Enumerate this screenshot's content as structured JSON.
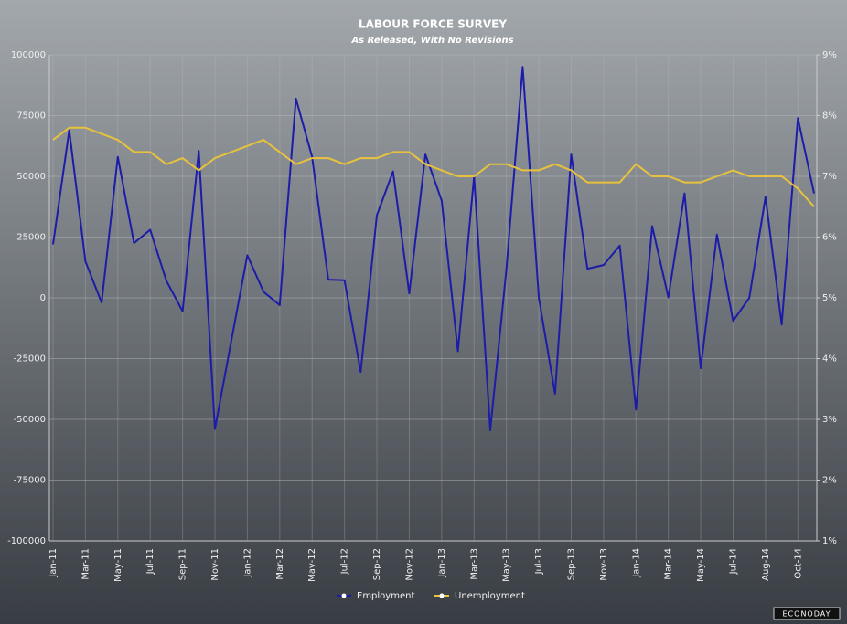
{
  "chart_data": {
    "type": "line",
    "title": "LABOUR FORCE SURVEY",
    "subtitle": "As Released, With No Revisions",
    "watermark": "ECONODAY",
    "categories": [
      "Jan-11",
      null,
      "Mar-11",
      null,
      "May-11",
      null,
      "Jul-11",
      null,
      "Sep-11",
      null,
      "Nov-11",
      null,
      "Jan-12",
      null,
      "Mar-12",
      null,
      "May-12",
      null,
      "Jul-12",
      null,
      "Sep-12",
      null,
      "Nov-12",
      null,
      "Jan-13",
      null,
      "Mar-13",
      null,
      "May-13",
      null,
      "Jul-13",
      null,
      "Sep-13",
      null,
      "Nov-13",
      null,
      "Jan-14",
      null,
      "Mar-14",
      null,
      "May-14",
      null,
      "Jul-14",
      null,
      "Aug-14",
      null,
      "Oct-14",
      null
    ],
    "series": [
      {
        "name": "Employment",
        "color": "#1c1ca8",
        "values": [
          22000,
          69000,
          15000,
          -2000,
          58000,
          22500,
          28000,
          7000,
          -5500,
          60500,
          -54000,
          -18000,
          17500,
          2500,
          -3000,
          82000,
          58000,
          7500,
          7200,
          -30500,
          34000,
          52000,
          1800,
          59000,
          40000,
          -22000,
          50000,
          -54500,
          12000,
          95000,
          0,
          -39500,
          59000,
          12000,
          13500,
          21500,
          -46000,
          29500,
          200,
          43000,
          -29000,
          26000,
          -9500,
          0,
          41500,
          -11000,
          74000,
          43000
        ]
      },
      {
        "name": "Unemployment",
        "color": "#e8c23c",
        "axis": "y2",
        "values": [
          7.6,
          7.8,
          7.8,
          7.7,
          7.6,
          7.4,
          7.4,
          7.2,
          7.3,
          7.1,
          7.3,
          7.4,
          7.5,
          7.6,
          7.4,
          7.2,
          7.3,
          7.3,
          7.2,
          7.3,
          7.3,
          7.4,
          7.4,
          7.2,
          7.1,
          7.0,
          7.0,
          7.2,
          7.2,
          7.1,
          7.1,
          7.2,
          7.1,
          6.9,
          6.9,
          6.9,
          7.2,
          7.0,
          7.0,
          6.9,
          6.9,
          7.0,
          7.1,
          7.0,
          7.0,
          7.0,
          6.8,
          6.5
        ]
      }
    ],
    "ylim": [
      -100000,
      100000
    ],
    "yticks": [
      -100000,
      -75000,
      -50000,
      -25000,
      0,
      25000,
      50000,
      75000,
      100000
    ],
    "y2lim": [
      1,
      9
    ],
    "y2ticks": [
      {
        "value": 1,
        "label": "1%"
      },
      {
        "value": 2,
        "label": "2%"
      },
      {
        "value": 3,
        "label": "3%"
      },
      {
        "value": 4,
        "label": "4%"
      },
      {
        "value": 5,
        "label": "5%"
      },
      {
        "value": 6,
        "label": "6%"
      },
      {
        "value": 7,
        "label": "7%"
      },
      {
        "value": 8,
        "label": "8%"
      },
      {
        "value": 9,
        "label": "9%"
      }
    ],
    "grid": true,
    "legend": "bottom"
  }
}
